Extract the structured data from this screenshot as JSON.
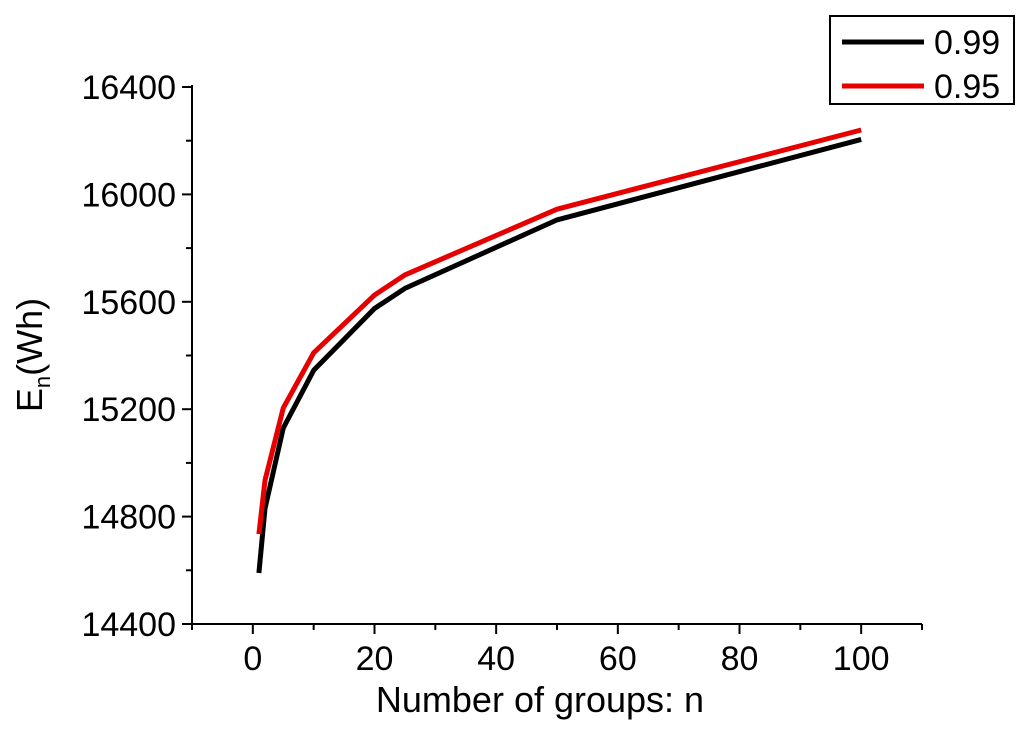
{
  "chart_data": {
    "type": "line",
    "title": "",
    "xlabel": "Number of groups: n",
    "ylabel_main": "E",
    "ylabel_sub": "n",
    "ylabel_unit": "(Wh)",
    "xlim": [
      -10,
      110
    ],
    "ylim": [
      14400,
      16400
    ],
    "xticks": [
      0,
      20,
      40,
      60,
      80,
      100
    ],
    "xtick_labels": [
      "0",
      "20",
      "40",
      "60",
      "80",
      "100"
    ],
    "yticks": [
      14400,
      14800,
      15200,
      15600,
      16000,
      16400
    ],
    "ytick_labels": [
      "14400",
      "14800",
      "15200",
      "15600",
      "16000",
      "16400"
    ],
    "grid": false,
    "legend_position": "top-right",
    "series": [
      {
        "name": "0.99",
        "color": "#000000",
        "x": [
          1,
          2,
          5,
          10,
          20,
          25,
          50,
          100
        ],
        "y": [
          14590,
          14830,
          15130,
          15345,
          15575,
          15650,
          15905,
          16205
        ]
      },
      {
        "name": "0.95",
        "color": "#e60000",
        "x": [
          1,
          2,
          5,
          10,
          20,
          25,
          50,
          100
        ],
        "y": [
          14735,
          14935,
          15205,
          15410,
          15625,
          15700,
          15945,
          16240
        ]
      }
    ]
  }
}
